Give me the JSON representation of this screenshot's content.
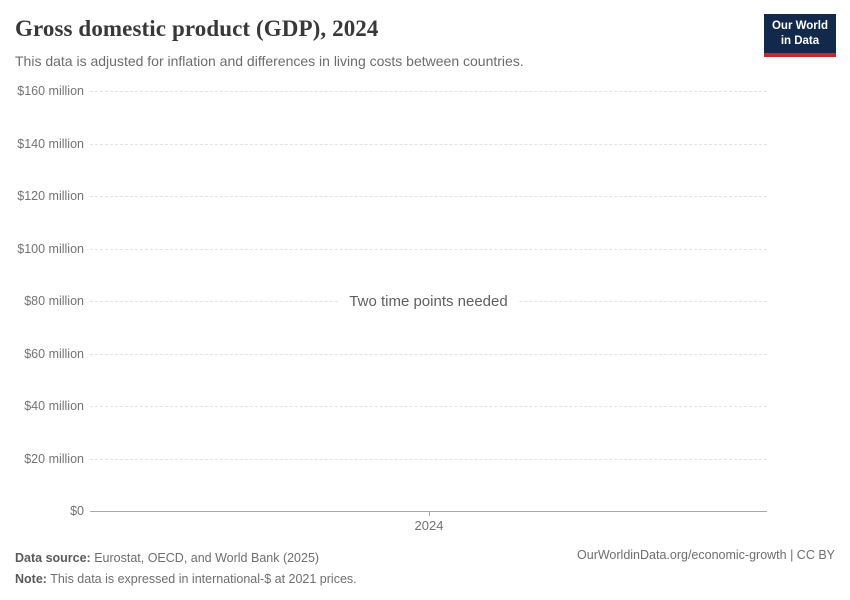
{
  "header": {
    "title": "Gross domestic product (GDP), 2024",
    "subtitle": "This data is adjusted for inflation and differences in living costs between countries.",
    "logo": {
      "line1": "Our World",
      "line2": "in Data"
    }
  },
  "chart_data": {
    "type": "line",
    "title": "Gross domestic product (GDP), 2024",
    "series": [],
    "empty_state_message": "Two time points needed",
    "x": [
      2024
    ],
    "xticks": [
      "2024"
    ],
    "ylim": [
      0,
      160000000
    ],
    "yticks": [
      {
        "label": "$160 million",
        "value": 160000000
      },
      {
        "label": "$140 million",
        "value": 140000000
      },
      {
        "label": "$120 million",
        "value": 120000000
      },
      {
        "label": "$100 million",
        "value": 100000000
      },
      {
        "label": "$80 million",
        "value": 80000000
      },
      {
        "label": "$60 million",
        "value": 60000000
      },
      {
        "label": "$40 million",
        "value": 40000000
      },
      {
        "label": "$20 million",
        "value": 20000000
      },
      {
        "label": "$0",
        "value": 0
      }
    ],
    "grid": "horizontal-dashed",
    "legend_position": "none"
  },
  "footer": {
    "data_source_label": "Data source:",
    "data_source_value": " Eurostat, OECD, and World Bank (2025)",
    "note_label": "Note:",
    "note_value": " This data is expressed in international-$ at 2021 prices.",
    "link": "OurWorldinData.org/economic-growth",
    "separator": " | ",
    "license": "CC BY"
  },
  "colors": {
    "logo_background": "#12294b",
    "logo_accent_red": "#c32c26",
    "title_text": "#383838",
    "subtitle_text": "#6c6c6c",
    "axis_text": "#737373",
    "gridline": "#e2e2e2",
    "axis_line": "#a8a8a8",
    "background": "#ffffff"
  }
}
